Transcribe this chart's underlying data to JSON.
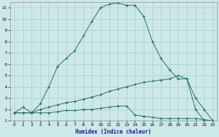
{
  "xlabel": "Humidex (Indice chaleur)",
  "background_color": "#cce8e8",
  "grid_color": "#aacccc",
  "line_color": "#1a6b5e",
  "xlim": [
    -0.5,
    23.5
  ],
  "ylim": [
    1,
    11.5
  ],
  "xticks": [
    0,
    1,
    2,
    3,
    4,
    5,
    6,
    7,
    8,
    9,
    10,
    11,
    12,
    13,
    14,
    15,
    16,
    17,
    18,
    19,
    20,
    21,
    22,
    23
  ],
  "yticks": [
    1,
    2,
    3,
    4,
    5,
    6,
    7,
    8,
    9,
    10,
    11
  ],
  "series": {
    "main": {
      "x": [
        0,
        1,
        2,
        3,
        4,
        5,
        6,
        7,
        8,
        9,
        10,
        11,
        12,
        13,
        14,
        15,
        16,
        17,
        18,
        19,
        20,
        21,
        22,
        23
      ],
      "y": [
        1.7,
        2.2,
        1.7,
        2.5,
        4.0,
        5.8,
        6.5,
        7.2,
        8.5,
        9.8,
        11.0,
        11.3,
        11.4,
        11.2,
        11.2,
        10.2,
        8.0,
        6.5,
        5.5,
        4.7,
        4.7,
        2.0,
        1.0,
        1.0
      ]
    },
    "upper": {
      "x": [
        0,
        1,
        2,
        3,
        4,
        5,
        6,
        7,
        8,
        9,
        10,
        11,
        12,
        13,
        14,
        15,
        16,
        17,
        18,
        19,
        20,
        21,
        22,
        23
      ],
      "y": [
        1.7,
        1.7,
        1.7,
        2.0,
        2.2,
        2.4,
        2.6,
        2.7,
        2.9,
        3.1,
        3.3,
        3.6,
        3.8,
        4.0,
        4.2,
        4.4,
        4.5,
        4.6,
        4.7,
        5.0,
        4.7,
        3.0,
        2.0,
        1.0
      ]
    },
    "lower": {
      "x": [
        0,
        1,
        2,
        3,
        4,
        5,
        6,
        7,
        8,
        9,
        10,
        11,
        12,
        13,
        14,
        15,
        16,
        17,
        18,
        19,
        20,
        21,
        22,
        23
      ],
      "y": [
        1.7,
        1.7,
        1.7,
        1.7,
        1.7,
        1.8,
        1.9,
        1.9,
        2.0,
        2.0,
        2.1,
        2.2,
        2.3,
        2.3,
        1.5,
        1.4,
        1.3,
        1.2,
        1.2,
        1.2,
        1.2,
        1.2,
        1.1,
        1.0
      ]
    }
  }
}
